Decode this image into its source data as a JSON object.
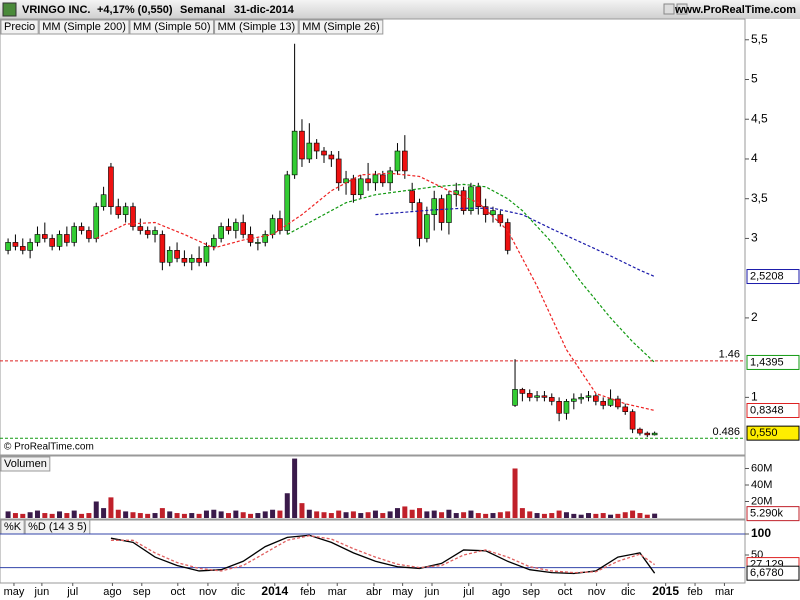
{
  "chart_data": [
    {
      "type": "candlestick",
      "title": "VRINGO INC.",
      "subtitle": "+4,17% (0,550)",
      "period": "Semanal",
      "date": "31-dic-2014",
      "source": "www.ProRealTime.com",
      "copyright": "© ProRealTime.com",
      "price_label": "Precio",
      "up_color": "#33cc33",
      "down_color": "#ee1111",
      "candles": [
        [
          2.85,
          3.0,
          2.8,
          2.95
        ],
        [
          2.95,
          3.05,
          2.85,
          2.9
        ],
        [
          2.9,
          3.0,
          2.8,
          2.85
        ],
        [
          2.85,
          3.0,
          2.75,
          2.95
        ],
        [
          2.95,
          3.15,
          2.9,
          3.05
        ],
        [
          3.05,
          3.2,
          2.95,
          3.0
        ],
        [
          3.0,
          3.05,
          2.85,
          2.9
        ],
        [
          2.9,
          3.1,
          2.85,
          3.05
        ],
        [
          3.05,
          3.15,
          2.9,
          2.95
        ],
        [
          2.95,
          3.2,
          2.9,
          3.15
        ],
        [
          3.15,
          3.2,
          3.05,
          3.1
        ],
        [
          3.1,
          3.15,
          2.95,
          3.0
        ],
        [
          3.0,
          3.45,
          2.95,
          3.4
        ],
        [
          3.4,
          3.65,
          3.35,
          3.55
        ],
        [
          3.9,
          3.95,
          3.3,
          3.4
        ],
        [
          3.4,
          3.5,
          3.25,
          3.3
        ],
        [
          3.3,
          3.45,
          3.2,
          3.4
        ],
        [
          3.4,
          3.45,
          3.1,
          3.15
        ],
        [
          3.15,
          3.25,
          3.05,
          3.1
        ],
        [
          3.1,
          3.15,
          3.0,
          3.05
        ],
        [
          3.05,
          3.15,
          2.95,
          3.1
        ],
        [
          3.05,
          3.1,
          2.6,
          2.7
        ],
        [
          2.7,
          2.9,
          2.65,
          2.85
        ],
        [
          2.85,
          2.95,
          2.7,
          2.75
        ],
        [
          2.75,
          2.85,
          2.65,
          2.7
        ],
        [
          2.7,
          2.8,
          2.6,
          2.75
        ],
        [
          2.75,
          2.9,
          2.65,
          2.7
        ],
        [
          2.7,
          2.95,
          2.65,
          2.9
        ],
        [
          2.9,
          3.05,
          2.85,
          3.0
        ],
        [
          3.0,
          3.2,
          2.95,
          3.15
        ],
        [
          3.15,
          3.25,
          3.05,
          3.1
        ],
        [
          3.1,
          3.25,
          3.0,
          3.2
        ],
        [
          3.2,
          3.3,
          3.0,
          3.05
        ],
        [
          3.05,
          3.15,
          2.9,
          2.95
        ],
        [
          2.95,
          3.0,
          2.85,
          2.95
        ],
        [
          2.95,
          3.1,
          2.9,
          3.05
        ],
        [
          3.05,
          3.3,
          3.0,
          3.25
        ],
        [
          3.25,
          3.35,
          3.05,
          3.1
        ],
        [
          3.1,
          3.85,
          3.05,
          3.8
        ],
        [
          3.8,
          5.45,
          3.75,
          4.35
        ],
        [
          4.35,
          4.5,
          3.9,
          4.0
        ],
        [
          4.0,
          4.45,
          3.95,
          4.2
        ],
        [
          4.2,
          4.25,
          4.0,
          4.1
        ],
        [
          4.1,
          4.15,
          3.95,
          4.05
        ],
        [
          4.05,
          4.1,
          3.9,
          4.0
        ],
        [
          4.0,
          4.1,
          3.6,
          3.7
        ],
        [
          3.7,
          3.85,
          3.55,
          3.75
        ],
        [
          3.75,
          3.8,
          3.45,
          3.55
        ],
        [
          3.55,
          3.8,
          3.5,
          3.75
        ],
        [
          3.75,
          3.95,
          3.6,
          3.7
        ],
        [
          3.7,
          3.85,
          3.6,
          3.8
        ],
        [
          3.8,
          3.85,
          3.65,
          3.7
        ],
        [
          3.7,
          3.9,
          3.6,
          3.85
        ],
        [
          3.85,
          4.2,
          3.8,
          4.1
        ],
        [
          4.1,
          4.3,
          3.75,
          3.85
        ],
        [
          3.6,
          3.7,
          3.35,
          3.45
        ],
        [
          3.45,
          3.5,
          2.9,
          3.0
        ],
        [
          3.0,
          3.4,
          2.95,
          3.3
        ],
        [
          3.3,
          3.6,
          3.1,
          3.5
        ],
        [
          3.5,
          3.55,
          3.1,
          3.2
        ],
        [
          3.2,
          3.6,
          3.05,
          3.55
        ],
        [
          3.55,
          3.7,
          3.4,
          3.6
        ],
        [
          3.6,
          3.65,
          3.3,
          3.35
        ],
        [
          3.35,
          3.7,
          3.3,
          3.65
        ],
        [
          3.65,
          3.7,
          3.3,
          3.4
        ],
        [
          3.4,
          3.5,
          3.2,
          3.3
        ],
        [
          3.3,
          3.4,
          3.2,
          3.35
        ],
        [
          3.3,
          3.35,
          3.15,
          3.2
        ],
        [
          3.2,
          3.25,
          2.8,
          2.85
        ],
        [
          0.9,
          1.48,
          0.88,
          1.1
        ],
        [
          1.1,
          1.12,
          0.95,
          1.05
        ],
        [
          1.05,
          1.1,
          0.95,
          1.0
        ],
        [
          1.0,
          1.08,
          0.95,
          1.02
        ],
        [
          1.02,
          1.08,
          0.95,
          1.0
        ],
        [
          1.0,
          1.05,
          0.9,
          0.95
        ],
        [
          0.95,
          1.0,
          0.7,
          0.8
        ],
        [
          0.8,
          0.98,
          0.72,
          0.95
        ],
        [
          0.95,
          1.05,
          0.85,
          0.98
        ],
        [
          0.98,
          1.05,
          0.92,
          1.0
        ],
        [
          1.0,
          1.08,
          0.95,
          1.02
        ],
        [
          1.02,
          1.05,
          0.9,
          0.95
        ],
        [
          0.95,
          1.0,
          0.85,
          0.9
        ],
        [
          0.9,
          1.1,
          0.88,
          0.98
        ],
        [
          0.98,
          1.02,
          0.85,
          0.88
        ],
        [
          0.88,
          0.92,
          0.78,
          0.82
        ],
        [
          0.82,
          0.85,
          0.55,
          0.6
        ],
        [
          0.6,
          0.62,
          0.52,
          0.55
        ],
        [
          0.55,
          0.57,
          0.5,
          0.528
        ],
        [
          0.528,
          0.57,
          0.52,
          0.55
        ]
      ],
      "series": [
        {
          "name": "MM (Simple 200)",
          "color": "#000000"
        },
        {
          "name": "MM (Simple 50)",
          "color": "#1a1aaa",
          "x": [
            50,
            54,
            58,
            62,
            66,
            70,
            74,
            78,
            82,
            86,
            88
          ],
          "values": [
            3.3,
            3.33,
            3.36,
            3.38,
            3.38,
            3.3,
            3.12,
            2.95,
            2.78,
            2.6,
            2.5208
          ]
        },
        {
          "name": "MM (Simple 13)",
          "color": "#ee2222",
          "x": [
            12,
            16,
            20,
            24,
            28,
            32,
            36,
            40,
            44,
            48,
            52,
            56,
            60,
            64,
            68,
            72,
            76,
            80,
            84,
            88
          ],
          "values": [
            3.0,
            3.18,
            3.2,
            3.05,
            2.88,
            2.98,
            3.05,
            3.3,
            3.6,
            3.8,
            3.82,
            3.78,
            3.6,
            3.45,
            3.1,
            2.4,
            1.6,
            1.05,
            0.92,
            0.8348
          ]
        },
        {
          "name": "MM (Simple 26)",
          "color": "#119911",
          "x": [
            38,
            42,
            46,
            50,
            54,
            58,
            62,
            65,
            68,
            70,
            74,
            78,
            82,
            85,
            88
          ],
          "values": [
            3.05,
            3.25,
            3.45,
            3.55,
            3.6,
            3.65,
            3.68,
            3.65,
            3.5,
            3.35,
            2.95,
            2.45,
            2.0,
            1.7,
            1.4395
          ]
        }
      ],
      "lines": [
        {
          "value": 1.46,
          "label": "1.46",
          "color": "#dd2222"
        },
        {
          "value": 0.486,
          "label": "0.486",
          "color": "#119911"
        }
      ],
      "markers": [
        {
          "value": 2.5208,
          "label": "2,5208",
          "color": "#1a1aaa",
          "bg": "#ffffff"
        },
        {
          "value": 1.4395,
          "label": "1,4395",
          "color": "#119911",
          "bg": "#ffffff"
        },
        {
          "value": 0.8348,
          "label": "0,8348",
          "color": "#dd2222",
          "bg": "#ffffff"
        },
        {
          "value": 0.55,
          "label": "0,550",
          "color": "#000000",
          "bg": "#ffee00"
        }
      ],
      "xlim": [
        -1.1,
        100.3
      ],
      "xticks": [
        {
          "value": 0.8,
          "label": "may"
        },
        {
          "value": 4.6,
          "label": "jun"
        },
        {
          "value": 8.8,
          "label": "jul"
        },
        {
          "value": 14.2,
          "label": "ago"
        },
        {
          "value": 18.2,
          "label": "sep"
        },
        {
          "value": 23.1,
          "label": "oct"
        },
        {
          "value": 27.2,
          "label": "nov"
        },
        {
          "value": 31.3,
          "label": "dic"
        },
        {
          "value": 36.3,
          "label": "2014"
        },
        {
          "value": 40.8,
          "label": "feb"
        },
        {
          "value": 44.8,
          "label": "mar"
        },
        {
          "value": 49.8,
          "label": "abr"
        },
        {
          "value": 53.7,
          "label": "may"
        },
        {
          "value": 57.7,
          "label": "jun"
        },
        {
          "value": 62.7,
          "label": "jul"
        },
        {
          "value": 67.1,
          "label": "ago"
        },
        {
          "value": 71.2,
          "label": "sep"
        },
        {
          "value": 75.8,
          "label": "oct"
        },
        {
          "value": 80.1,
          "label": "nov"
        },
        {
          "value": 84.4,
          "label": "dic"
        },
        {
          "value": 89.5,
          "label": "2015"
        },
        {
          "value": 93.5,
          "label": "feb"
        },
        {
          "value": 97.5,
          "label": "mar"
        }
      ],
      "ylim": [
        0.3,
        5.56
      ],
      "yticks": [
        {
          "value": 5.5,
          "label": "5,5"
        },
        5,
        {
          "value": 4.5,
          "label": "4,5"
        },
        4,
        {
          "value": 3.5,
          "label": "3,5"
        },
        3,
        2,
        1
      ]
    },
    {
      "type": "bar",
      "title": "Volumen",
      "up_color": "#3a1a4a",
      "down_color": "#c0202a",
      "values": [
        8,
        6,
        5,
        7,
        9,
        6,
        5,
        8,
        6,
        9,
        5,
        6,
        20,
        12,
        25,
        10,
        8,
        7,
        6,
        5,
        6,
        12,
        8,
        6,
        5,
        6,
        5,
        9,
        10,
        8,
        6,
        9,
        7,
        5,
        6,
        8,
        10,
        9,
        30,
        72,
        18,
        10,
        8,
        7,
        6,
        9,
        7,
        8,
        6,
        7,
        9,
        6,
        8,
        12,
        14,
        10,
        12,
        8,
        9,
        7,
        10,
        6,
        7,
        9,
        6,
        5,
        6,
        7,
        8,
        60,
        12,
        8,
        6,
        5,
        6,
        9,
        7,
        5,
        4,
        6,
        5,
        6,
        4,
        5,
        7,
        9,
        6,
        4,
        5.29
      ],
      "ylim": [
        0,
        72.7
      ],
      "yticks": [
        {
          "value": 60,
          "label": "60M"
        },
        {
          "value": 40,
          "label": "40M"
        },
        {
          "value": 20,
          "label": "20M"
        }
      ],
      "markers": [
        {
          "value": 5.29,
          "label": "5.290k",
          "color": "#c0202a",
          "bg": "#ffffff"
        }
      ]
    },
    {
      "type": "line",
      "series": [
        {
          "name": "%K",
          "color": "#000000",
          "x": [
            14,
            17,
            20,
            23,
            26,
            29,
            32,
            35,
            38,
            41,
            44,
            47,
            50,
            53,
            56,
            59,
            62,
            65,
            68,
            71,
            74,
            77,
            80,
            83,
            86,
            88
          ],
          "values": [
            90,
            80,
            45,
            25,
            12,
            15,
            35,
            70,
            92,
            97,
            80,
            55,
            35,
            22,
            18,
            30,
            62,
            60,
            35,
            15,
            8,
            6,
            12,
            45,
            55,
            6.678
          ]
        },
        {
          "name": "%D (14 3 5)",
          "color": "#e06060",
          "x": [
            14,
            17,
            20,
            23,
            26,
            29,
            32,
            35,
            38,
            41,
            44,
            47,
            50,
            53,
            56,
            59,
            62,
            65,
            68,
            71,
            74,
            77,
            80,
            83,
            86,
            88
          ],
          "values": [
            85,
            85,
            55,
            32,
            18,
            12,
            25,
            55,
            85,
            96,
            88,
            65,
            45,
            28,
            20,
            25,
            50,
            62,
            45,
            22,
            12,
            8,
            10,
            35,
            52,
            27.129
          ]
        }
      ],
      "levels": [
        100,
        20
      ],
      "level_color": "#3344aa",
      "ylim": [
        -14.3,
        133.3
      ],
      "yticks": [
        100,
        50
      ],
      "markers": [
        {
          "value": 27.129,
          "label": "27,129",
          "color": "#dd2222",
          "bg": "#ffffff"
        },
        {
          "value": 6.678,
          "label": "6,6780",
          "color": "#000000",
          "bg": "#ffffff"
        }
      ]
    }
  ]
}
